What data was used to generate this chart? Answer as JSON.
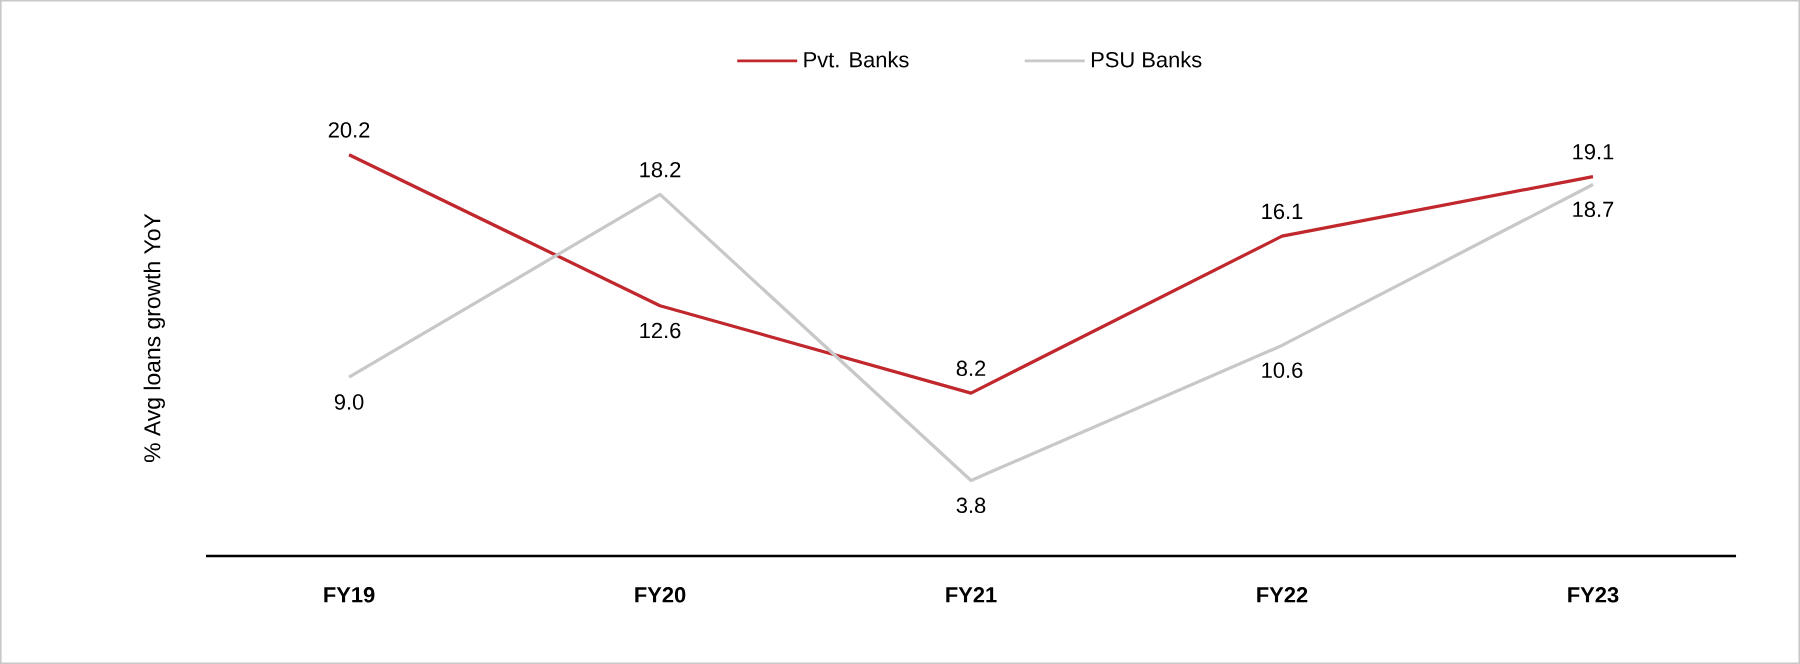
{
  "chart_data": {
    "type": "line",
    "ylabel": "% Avg loans growth YoY",
    "categories": [
      "FY19",
      "FY20",
      "FY21",
      "FY22",
      "FY23"
    ],
    "series": [
      {
        "name": "Pvt. Banks",
        "color": "#c0282d",
        "values": [
          20.2,
          12.6,
          8.2,
          16.1,
          19.1
        ],
        "value_labels": [
          "20.2",
          "12.6",
          "8.2",
          "16.1",
          "19.1"
        ]
      },
      {
        "name": "PSU Banks",
        "color": "#c8c8c8",
        "values": [
          9.0,
          18.2,
          3.8,
          10.6,
          18.7
        ],
        "value_labels": [
          "9.0",
          "18.2",
          "3.8",
          "10.6",
          "18.7"
        ]
      }
    ],
    "legend": "top",
    "grid": false,
    "marker": "none",
    "line_style": "solid"
  }
}
